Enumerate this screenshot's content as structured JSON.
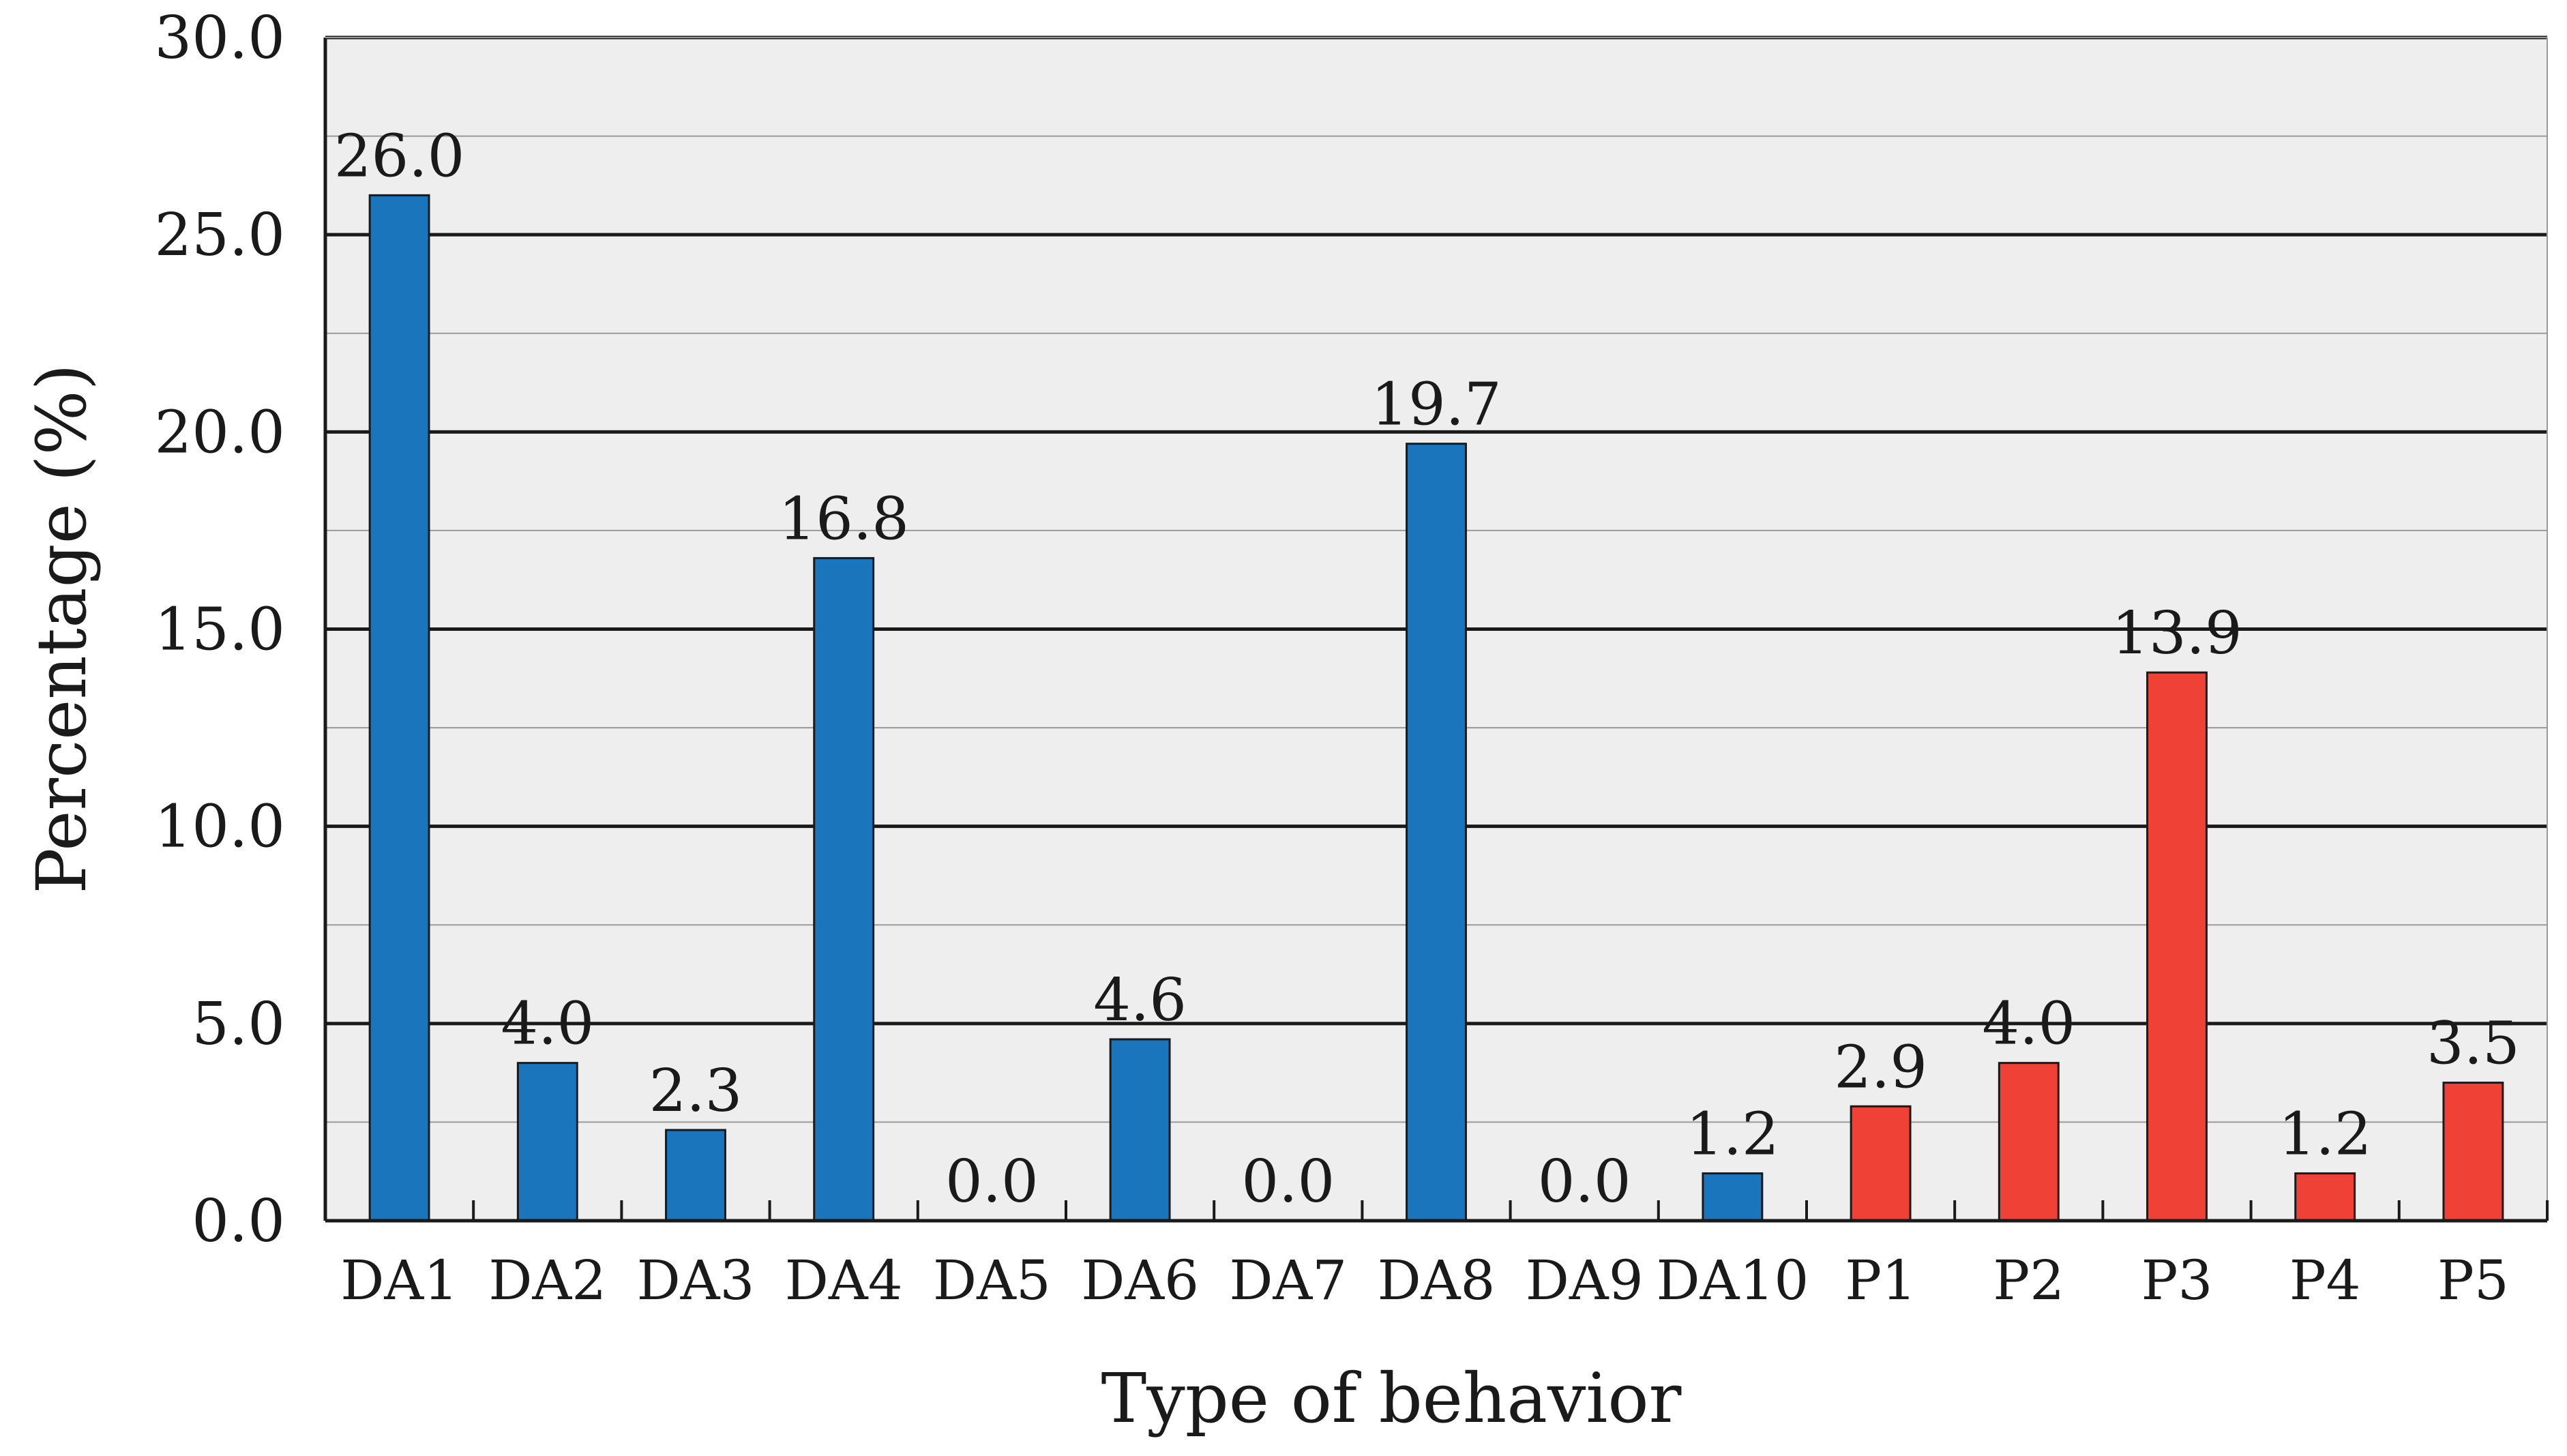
{
  "chart_data": {
    "type": "bar",
    "title": "",
    "xlabel": "Type of behavior",
    "ylabel": "Percentage (%)",
    "categories": [
      "DA1",
      "DA2",
      "DA3",
      "DA4",
      "DA5",
      "DA6",
      "DA7",
      "DA8",
      "DA9",
      "DA10",
      "P1",
      "P2",
      "P3",
      "P4",
      "P5"
    ],
    "values": [
      26.0,
      4.0,
      2.3,
      16.8,
      0.0,
      4.6,
      0.0,
      19.7,
      0.0,
      1.2,
      2.9,
      4.0,
      13.9,
      1.2,
      3.5
    ],
    "value_labels": [
      "26.0",
      "4.0",
      "2.3",
      "16.8",
      "0.0",
      "4.6",
      "0.0",
      "19.7",
      "0.0",
      "1.2",
      "2.9",
      "4.0",
      "13.9",
      "1.2",
      "3.5"
    ],
    "bar_groups": [
      "DA",
      "DA",
      "DA",
      "DA",
      "DA",
      "DA",
      "DA",
      "DA",
      "DA",
      "DA",
      "P",
      "P",
      "P",
      "P",
      "P"
    ],
    "colors": {
      "DA": "#1b75bd",
      "P": "#ef4136"
    },
    "ylim": [
      0,
      30
    ],
    "yticks": [
      0,
      5,
      10,
      15,
      20,
      25,
      30
    ],
    "ytick_labels": [
      "0.0",
      "5.0",
      "10.0",
      "15.0",
      "20.0",
      "25.0",
      "30.0"
    ],
    "minor_grid_step": 2.5,
    "grid": true,
    "plot_background": "#eeeeee",
    "legend": "none"
  }
}
